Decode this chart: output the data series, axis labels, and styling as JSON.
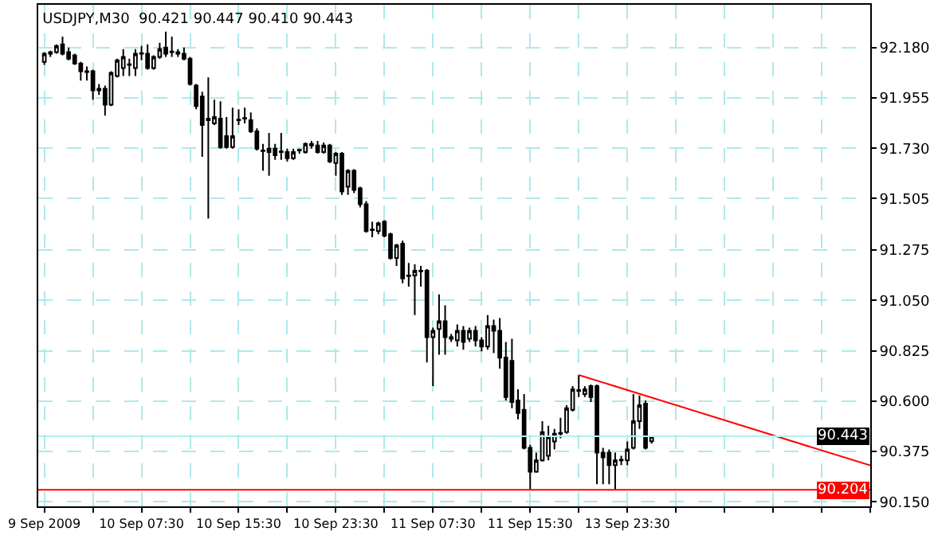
{
  "chart_data": {
    "type": "candlestick",
    "title": "USDJPY,M30  90.421 90.447 90.410 90.443",
    "color": "#000000",
    "categories": [
      "9 Sep 2009",
      null,
      null,
      null,
      null,
      null,
      null,
      null,
      null,
      null,
      null,
      null,
      null,
      null,
      null,
      null,
      "10 Sep 07:30",
      null,
      null,
      null,
      null,
      null,
      null,
      null,
      null,
      null,
      null,
      null,
      null,
      null,
      null,
      null,
      "10 Sep 15:30",
      null,
      null,
      null,
      null,
      null,
      null,
      null,
      null,
      null,
      null,
      null,
      null,
      null,
      null,
      null,
      "10 Sep 23:30",
      null,
      null,
      null,
      null,
      null,
      null,
      null,
      null,
      null,
      null,
      null,
      null,
      null,
      null,
      null,
      "11 Sep 07:30",
      null,
      null,
      null,
      null,
      null,
      null,
      null,
      null,
      null,
      null,
      null,
      null,
      null,
      null,
      null,
      "11 Sep 15:30",
      null,
      null,
      null,
      null,
      null,
      null,
      null,
      null,
      null,
      null,
      null,
      null,
      null,
      null,
      null,
      "13 Sep 23:30",
      null,
      null,
      null,
      null,
      null,
      null,
      null,
      null,
      null,
      null,
      null,
      null,
      null,
      null,
      null,
      null,
      null,
      null,
      null,
      null,
      null,
      null,
      null,
      null,
      null,
      null,
      null,
      null,
      null,
      null,
      null,
      null,
      null,
      null,
      null,
      null,
      null,
      null,
      null,
      null
    ],
    "ohlc": [
      [
        92.116,
        92.159,
        92.102,
        92.152
      ],
      [
        92.152,
        92.166,
        92.138,
        92.159
      ],
      [
        92.159,
        92.194,
        92.152,
        92.187
      ],
      [
        92.194,
        92.229,
        92.145,
        92.152
      ],
      [
        92.159,
        92.18,
        92.123,
        92.13
      ],
      [
        92.145,
        92.152,
        92.102,
        92.109
      ],
      [
        92.109,
        92.116,
        92.032,
        92.074
      ],
      [
        92.074,
        92.095,
        92.032,
        92.07
      ],
      [
        92.074,
        92.081,
        91.947,
        91.989
      ],
      [
        91.996,
        92.017,
        91.968,
        91.989
      ],
      [
        91.996,
        92.01,
        91.876,
        91.925
      ],
      [
        91.925,
        92.074,
        91.918,
        92.067
      ],
      [
        92.053,
        92.13,
        92.046,
        92.123
      ],
      [
        92.088,
        92.173,
        92.053,
        92.138
      ],
      [
        92.102,
        92.13,
        92.053,
        92.105
      ],
      [
        92.088,
        92.173,
        92.053,
        92.152
      ],
      [
        92.152,
        92.187,
        92.123,
        92.155
      ],
      [
        92.152,
        92.194,
        92.081,
        92.088
      ],
      [
        92.088,
        92.145,
        92.081,
        92.138
      ],
      [
        92.138,
        92.201,
        92.13,
        92.173
      ],
      [
        92.18,
        92.251,
        92.138,
        92.152
      ],
      [
        92.159,
        92.229,
        92.138,
        92.162
      ],
      [
        92.159,
        92.173,
        92.138,
        92.152
      ],
      [
        92.152,
        92.18,
        92.123,
        92.13
      ],
      [
        92.13,
        92.138,
        92.01,
        92.017
      ],
      [
        92.01,
        92.017,
        91.904,
        91.918
      ],
      [
        91.961,
        91.982,
        91.692,
        91.834
      ],
      [
        91.855,
        92.046,
        91.416,
        91.862
      ],
      [
        91.841,
        91.947,
        91.834,
        91.869
      ],
      [
        91.862,
        91.94,
        91.728,
        91.735
      ],
      [
        91.784,
        91.869,
        91.728,
        91.735
      ],
      [
        91.735,
        91.911,
        91.728,
        91.784
      ],
      [
        91.855,
        91.904,
        91.834,
        91.858
      ],
      [
        91.862,
        91.911,
        91.841,
        91.865
      ],
      [
        91.855,
        91.89,
        91.798,
        91.805
      ],
      [
        91.805,
        91.819,
        91.72,
        91.728
      ],
      [
        91.72,
        91.749,
        91.629,
        91.717
      ],
      [
        91.713,
        91.798,
        91.607,
        91.728
      ],
      [
        91.728,
        91.749,
        91.678,
        91.699
      ],
      [
        91.713,
        91.798,
        91.678,
        91.716
      ],
      [
        91.713,
        91.728,
        91.671,
        91.685
      ],
      [
        91.685,
        91.728,
        91.678,
        91.713
      ],
      [
        91.72,
        91.728,
        91.706,
        91.723
      ],
      [
        91.713,
        91.756,
        91.706,
        91.749
      ],
      [
        91.749,
        91.763,
        91.728,
        91.742
      ],
      [
        91.742,
        91.763,
        91.706,
        91.713
      ],
      [
        91.713,
        91.756,
        91.706,
        91.742
      ],
      [
        91.742,
        91.749,
        91.664,
        91.671
      ],
      [
        91.664,
        91.713,
        91.607,
        91.706
      ],
      [
        91.706,
        91.713,
        91.522,
        91.537
      ],
      [
        91.558,
        91.636,
        91.522,
        91.629
      ],
      [
        91.629,
        91.636,
        91.53,
        91.544
      ],
      [
        91.551,
        91.558,
        91.466,
        91.48
      ],
      [
        91.48,
        91.494,
        91.353,
        91.36
      ],
      [
        91.367,
        91.402,
        91.332,
        91.364
      ],
      [
        91.36,
        91.402,
        91.346,
        91.395
      ],
      [
        91.402,
        91.409,
        91.332,
        91.339
      ],
      [
        91.346,
        91.353,
        91.233,
        91.24
      ],
      [
        91.24,
        91.303,
        91.204,
        91.296
      ],
      [
        91.303,
        91.317,
        91.127,
        91.148
      ],
      [
        91.162,
        91.218,
        91.112,
        91.159
      ],
      [
        91.162,
        91.211,
        90.985,
        91.183
      ],
      [
        91.183,
        91.204,
        91.112,
        91.18
      ],
      [
        91.183,
        91.19,
        90.773,
        90.886
      ],
      [
        90.886,
        90.929,
        90.667,
        90.914
      ],
      [
        90.922,
        91.077,
        90.808,
        90.957
      ],
      [
        90.957,
        91.028,
        90.808,
        90.886
      ],
      [
        90.886,
        90.9,
        90.865,
        90.879
      ],
      [
        90.872,
        90.943,
        90.844,
        90.914
      ],
      [
        90.914,
        90.936,
        90.83,
        90.865
      ],
      [
        90.879,
        90.929,
        90.865,
        90.914
      ],
      [
        90.914,
        90.936,
        90.844,
        90.872
      ],
      [
        90.872,
        90.886,
        90.823,
        90.844
      ],
      [
        90.844,
        90.985,
        90.83,
        90.936
      ],
      [
        90.936,
        90.964,
        90.815,
        90.914
      ],
      [
        90.914,
        90.971,
        90.745,
        90.794
      ],
      [
        90.794,
        90.865,
        90.603,
        90.618
      ],
      [
        90.78,
        90.879,
        90.568,
        90.596
      ],
      [
        90.603,
        90.653,
        90.519,
        90.547
      ],
      [
        90.561,
        90.632,
        90.384,
        90.391
      ],
      [
        90.391,
        90.405,
        90.204,
        90.285
      ],
      [
        90.285,
        90.37,
        90.28,
        90.335
      ],
      [
        90.335,
        90.511,
        90.33,
        90.462
      ],
      [
        90.356,
        90.49,
        90.335,
        90.441
      ],
      [
        90.42,
        90.476,
        90.384,
        90.455
      ],
      [
        90.455,
        90.526,
        90.434,
        90.458
      ],
      [
        90.462,
        90.582,
        90.455,
        90.568
      ],
      [
        90.561,
        90.667,
        90.554,
        90.653
      ],
      [
        90.646,
        90.717,
        90.618,
        90.649
      ],
      [
        90.632,
        90.667,
        90.618,
        90.653
      ],
      [
        90.667,
        90.674,
        90.596,
        90.618
      ],
      [
        90.667,
        90.674,
        90.229,
        90.37
      ],
      [
        90.37,
        90.391,
        90.229,
        90.349
      ],
      [
        90.37,
        90.384,
        90.229,
        90.314
      ],
      [
        90.314,
        90.37,
        90.204,
        90.335
      ],
      [
        90.335,
        90.356,
        90.314,
        90.338
      ],
      [
        90.335,
        90.42,
        90.314,
        90.384
      ],
      [
        90.391,
        90.632,
        90.384,
        90.511
      ],
      [
        90.511,
        90.625,
        90.476,
        90.582
      ],
      [
        90.589,
        90.603,
        90.384,
        90.391
      ],
      [
        90.421,
        90.447,
        90.41,
        90.443
      ],
      null,
      null,
      null,
      null,
      null,
      null,
      null,
      null,
      null,
      null,
      null,
      null,
      null,
      null,
      null,
      null,
      null,
      null,
      null,
      null,
      null,
      null,
      null,
      null,
      null,
      null,
      null,
      null,
      null,
      null,
      null,
      null,
      null,
      null,
      null,
      null
    ],
    "series": [
      {
        "type": "line",
        "color": "#ff0000",
        "values": [
          null,
          null,
          null,
          null,
          null,
          null,
          null,
          null,
          null,
          null,
          null,
          null,
          null,
          null,
          null,
          null,
          null,
          null,
          null,
          null,
          null,
          null,
          null,
          null,
          null,
          null,
          null,
          null,
          null,
          null,
          null,
          null,
          null,
          null,
          null,
          null,
          null,
          null,
          null,
          null,
          null,
          null,
          null,
          null,
          null,
          null,
          null,
          null,
          null,
          null,
          null,
          null,
          null,
          null,
          null,
          null,
          null,
          null,
          null,
          null,
          null,
          null,
          null,
          null,
          null,
          null,
          null,
          null,
          null,
          null,
          null,
          null,
          null,
          null,
          null,
          null,
          null,
          null,
          null,
          null,
          null,
          null,
          null,
          null,
          null,
          null,
          null,
          null,
          90.717,
          null,
          null,
          null,
          null,
          null,
          null,
          null,
          null,
          null,
          null,
          null,
          null,
          null,
          null,
          null,
          null,
          null,
          null,
          null,
          null,
          null,
          null,
          null,
          null,
          null,
          null,
          null,
          null,
          null,
          null,
          null,
          null,
          null,
          null,
          null,
          null,
          null,
          null,
          null,
          null,
          null,
          null,
          null,
          null,
          null,
          null,
          null,
          90.313
        ]
      }
    ],
    "ylim": [
      90.13,
      92.371
    ],
    "yticks": [
      {
        "value": 92.18,
        "label": "92.180"
      },
      91.955,
      {
        "value": 91.73,
        "label": "91.730"
      },
      91.505,
      91.275,
      {
        "value": 91.05,
        "label": "91.050"
      },
      90.825,
      {
        "value": 90.6,
        "label": "90.600"
      },
      90.375,
      {
        "value": 90.15,
        "label": "90.150"
      }
    ],
    "grid": true,
    "ref_lines": [
      {
        "axis": "y",
        "value": 90.443,
        "label": "90.443",
        "color": "#b0f0f0"
      },
      {
        "axis": "y",
        "value": 90.204,
        "label": "90.204",
        "color": "#ff0000"
      }
    ]
  }
}
